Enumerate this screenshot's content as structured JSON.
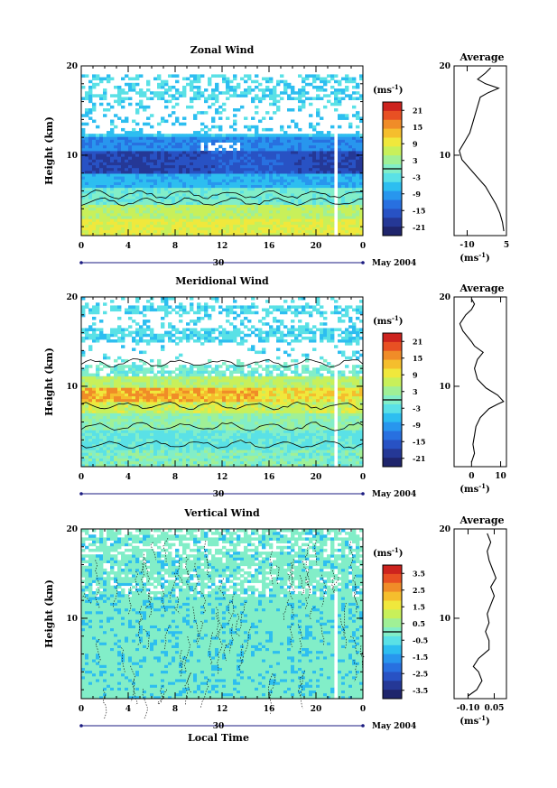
{
  "chart_data": [
    {
      "type": "heatmap",
      "title": "Zonal Wind",
      "ylabel": "Height (km)",
      "xlabel": "",
      "ylim": [
        1,
        20
      ],
      "xlim": [
        0,
        24
      ],
      "x_ticks": [
        "0",
        "4",
        "8",
        "12",
        "16",
        "20",
        "0"
      ],
      "y_ticks": [
        "10",
        "20"
      ],
      "date_day": "30",
      "date_label": "May 2004",
      "colorbar": {
        "unit": "(ms",
        "unit_exp": "-1",
        "unit_close": ")",
        "ticks": [
          "21",
          "15",
          "9",
          "3",
          "-3",
          "-9",
          "-15",
          "-21"
        ],
        "range": [
          -24,
          24
        ],
        "zero_line": true
      },
      "profile": {
        "type": "line",
        "title": "Average",
        "xlim": [
          -15,
          5
        ],
        "x_ticks": [
          "-10",
          "5"
        ],
        "x_tick_values": [
          -10,
          5
        ],
        "y_ticks": [
          "10",
          "20"
        ],
        "unit": "(ms",
        "unit_exp": "-1",
        "unit_close": ")",
        "points": [
          [
            4,
            1.5
          ],
          [
            3.5,
            2.5
          ],
          [
            2.5,
            3.5
          ],
          [
            1,
            4.5
          ],
          [
            -1,
            5.5
          ],
          [
            -3,
            6.5
          ],
          [
            -6,
            7.5
          ],
          [
            -9,
            8.5
          ],
          [
            -12,
            9.5
          ],
          [
            -13,
            10.5
          ],
          [
            -11,
            11.5
          ],
          [
            -9,
            12.5
          ],
          [
            -8,
            13.5
          ],
          [
            -7,
            14.5
          ],
          [
            -6,
            15.5
          ],
          [
            -5,
            16.5
          ],
          [
            -2,
            17
          ],
          [
            2,
            17.5
          ],
          [
            -3,
            18
          ],
          [
            -6,
            18.5
          ],
          [
            -3,
            19.2
          ],
          [
            -1,
            19.8
          ]
        ]
      }
    },
    {
      "type": "heatmap",
      "title": "Meridional Wind",
      "ylabel": "Height (km)",
      "xlabel": "",
      "ylim": [
        1,
        20
      ],
      "xlim": [
        0,
        24
      ],
      "x_ticks": [
        "0",
        "4",
        "8",
        "12",
        "16",
        "20",
        "0"
      ],
      "y_ticks": [
        "10",
        "20"
      ],
      "date_day": "30",
      "date_label": "May 2004",
      "colorbar": {
        "unit": "(ms",
        "unit_exp": "-1",
        "unit_close": ")",
        "ticks": [
          "21",
          "15",
          "9",
          "3",
          "-3",
          "-9",
          "-15",
          "-21"
        ],
        "range": [
          -24,
          24
        ],
        "zero_line": true
      },
      "profile": {
        "type": "line",
        "title": "Average",
        "xlim": [
          -6,
          12
        ],
        "x_ticks": [
          "0",
          "10"
        ],
        "x_tick_values": [
          0,
          10
        ],
        "y_ticks": [
          "10",
          "20"
        ],
        "unit": "(ms",
        "unit_exp": "-1",
        "unit_close": ")",
        "points": [
          [
            0,
            1.5
          ],
          [
            1,
            2.5
          ],
          [
            0.5,
            3.5
          ],
          [
            1,
            4.5
          ],
          [
            1.5,
            5.5
          ],
          [
            3,
            6.5
          ],
          [
            6,
            7.5
          ],
          [
            9,
            8
          ],
          [
            11,
            8.3
          ],
          [
            9,
            9
          ],
          [
            5,
            9.8
          ],
          [
            2,
            10.8
          ],
          [
            1,
            12
          ],
          [
            2,
            13
          ],
          [
            4,
            13.8
          ],
          [
            1,
            14.5
          ],
          [
            0,
            15
          ],
          [
            -3,
            16.2
          ],
          [
            -4,
            17
          ],
          [
            -2,
            18
          ],
          [
            0,
            18.6
          ],
          [
            1,
            19.2
          ],
          [
            0,
            19.8
          ]
        ]
      }
    },
    {
      "type": "heatmap",
      "title": "Vertical Wind",
      "ylabel": "Height (km)",
      "xlabel": "Local Time",
      "ylim": [
        1,
        20
      ],
      "xlim": [
        0,
        24
      ],
      "x_ticks": [
        "0",
        "4",
        "8",
        "12",
        "16",
        "20",
        "0"
      ],
      "y_ticks": [
        "10",
        "20"
      ],
      "date_day": "30",
      "date_label": "May 2004",
      "colorbar": {
        "unit": "(ms",
        "unit_exp": "-1",
        "unit_close": ")",
        "ticks": [
          "3.5",
          "2.5",
          "1.5",
          "0.5",
          "-0.5",
          "-1.5",
          "-2.5",
          "-3.5"
        ],
        "range": [
          -4,
          4
        ],
        "zero_line": true
      },
      "profile": {
        "type": "line",
        "title": "Average",
        "xlim": [
          -0.18,
          0.12
        ],
        "x_ticks": [
          "-0.10",
          "0.05"
        ],
        "x_tick_values": [
          -0.1,
          0.05
        ],
        "y_ticks": [
          "10",
          "20"
        ],
        "unit": "(ms",
        "unit_exp": "-1",
        "unit_close": ")",
        "points": [
          [
            -0.1,
            1.3
          ],
          [
            -0.05,
            2
          ],
          [
            -0.02,
            3
          ],
          [
            -0.04,
            4
          ],
          [
            -0.07,
            4.6
          ],
          [
            -0.04,
            5.5
          ],
          [
            0.02,
            6.5
          ],
          [
            0.02,
            7.5
          ],
          [
            0,
            8.5
          ],
          [
            0.02,
            9.5
          ],
          [
            0.01,
            10.5
          ],
          [
            0.03,
            11.5
          ],
          [
            0.05,
            12.5
          ],
          [
            0.03,
            13.5
          ],
          [
            0.06,
            14.5
          ],
          [
            0.04,
            15.5
          ],
          [
            0.02,
            16.5
          ],
          [
            0.01,
            17.5
          ],
          [
            0.03,
            18.5
          ],
          [
            0.01,
            19.5
          ]
        ]
      }
    }
  ]
}
